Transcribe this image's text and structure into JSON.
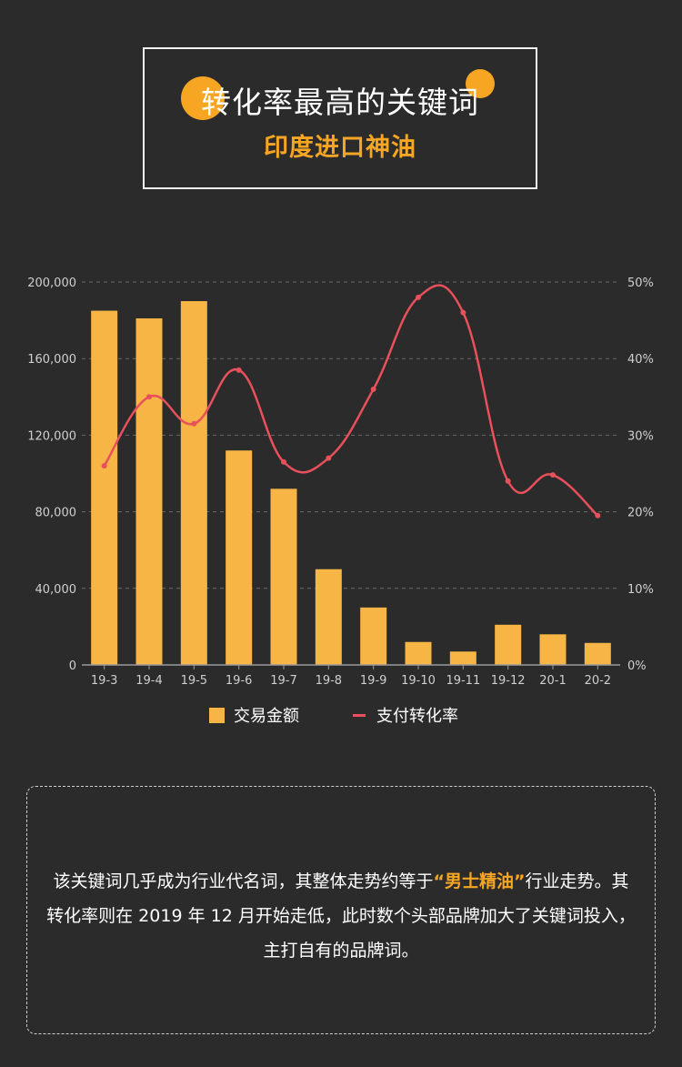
{
  "header": {
    "title": "转化率最高的关键词",
    "subtitle": "印度进口神油"
  },
  "colors": {
    "background": "#2b2b2b",
    "accent": "#f6a623",
    "bar": "#f6b545",
    "line": "#e8505b",
    "grid": "#6a6a6a",
    "axis_text": "#cfcfcf"
  },
  "chart_data": {
    "type": "bar",
    "categories": [
      "19-3",
      "19-4",
      "19-5",
      "19-6",
      "19-7",
      "19-8",
      "19-9",
      "19-10",
      "19-11",
      "19-12",
      "20-1",
      "20-2"
    ],
    "series": [
      {
        "name": "交易金额",
        "type": "bar",
        "axis": "left",
        "values": [
          185000,
          181000,
          190000,
          112000,
          92000,
          50000,
          30000,
          12000,
          7000,
          21000,
          16000,
          11500
        ]
      },
      {
        "name": "支付转化率",
        "type": "line",
        "axis": "right",
        "smooth": true,
        "values": [
          26,
          35,
          31.5,
          38.5,
          26.5,
          27,
          36,
          48,
          46,
          24,
          24.8,
          19.5
        ]
      }
    ],
    "y_left": {
      "min": 0,
      "max": 200000,
      "ticks": [
        0,
        40000,
        80000,
        120000,
        160000,
        200000
      ],
      "tick_labels": [
        "0",
        "40,000",
        "80,000",
        "120,000",
        "160,000",
        "200,000"
      ]
    },
    "y_right": {
      "min": 0,
      "max": 50,
      "ticks": [
        0,
        10,
        20,
        30,
        40,
        50
      ],
      "tick_labels": [
        "0%",
        "10%",
        "20%",
        "30%",
        "40%",
        "50%"
      ]
    },
    "grid": "dashed",
    "legend_position": "bottom"
  },
  "legend": {
    "bar_label": "交易金额",
    "line_label": "支付转化率"
  },
  "note": {
    "part1": "该关键词几乎成为行业代名词，其整体走势约等于",
    "highlight": "“男士精油”",
    "part2": "行业走势。其转化率则在 2019 年 12 月开始走低，此时数个头部品牌加大了关键词投入，主打自有的品牌词。"
  }
}
